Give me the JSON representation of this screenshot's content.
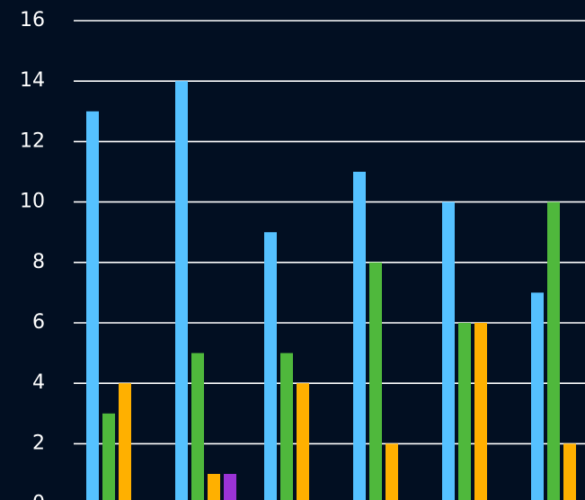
{
  "chart_data": {
    "type": "bar",
    "categories": [
      "",
      "",
      "",
      "",
      "",
      ""
    ],
    "series": [
      {
        "color": "#55c1ff",
        "values": [
          13,
          14,
          9,
          11,
          10,
          7
        ]
      },
      {
        "color": "#4fb83c",
        "values": [
          3,
          5,
          5,
          8,
          6,
          10
        ]
      },
      {
        "color": "#ffb000",
        "values": [
          4,
          1,
          4,
          2,
          6,
          2
        ]
      },
      {
        "color": "#9b33d6",
        "values": [
          0,
          1,
          0,
          0,
          0,
          0
        ]
      }
    ],
    "y_ticks": [
      "0",
      "2",
      "4",
      "6",
      "8",
      "10",
      "12",
      "14",
      "16"
    ],
    "ylim": [
      0,
      16
    ],
    "grid": true,
    "title": "",
    "xlabel": "",
    "ylabel": ""
  }
}
